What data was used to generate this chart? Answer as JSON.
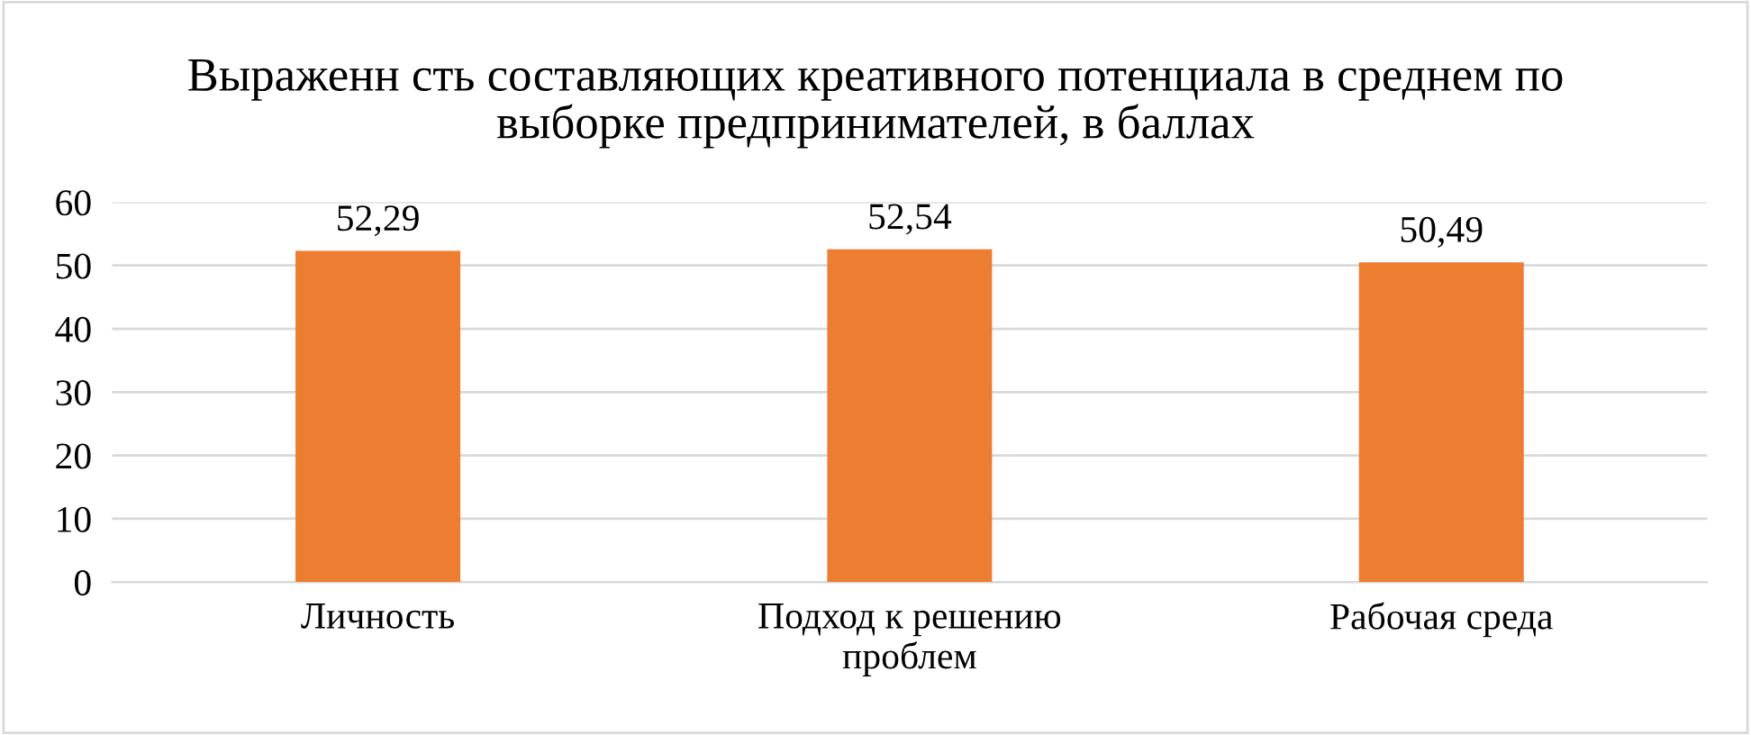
{
  "chart_data": {
    "type": "bar",
    "title": "Выраженн сть составляющих креативного потенциала в среднем по выборке предпринимателей, в баллах",
    "categories": [
      "Личность",
      "Подход к решению проблем",
      "Рабочая среда"
    ],
    "values": [
      52.29,
      52.54,
      50.49
    ],
    "value_labels": [
      "52,29",
      "52,54",
      "50,49"
    ],
    "color": "#ed7d31",
    "ylim": [
      0,
      60
    ],
    "yticks": [
      0,
      10,
      20,
      30,
      40,
      50,
      60
    ],
    "grid": "y",
    "legend": false
  }
}
